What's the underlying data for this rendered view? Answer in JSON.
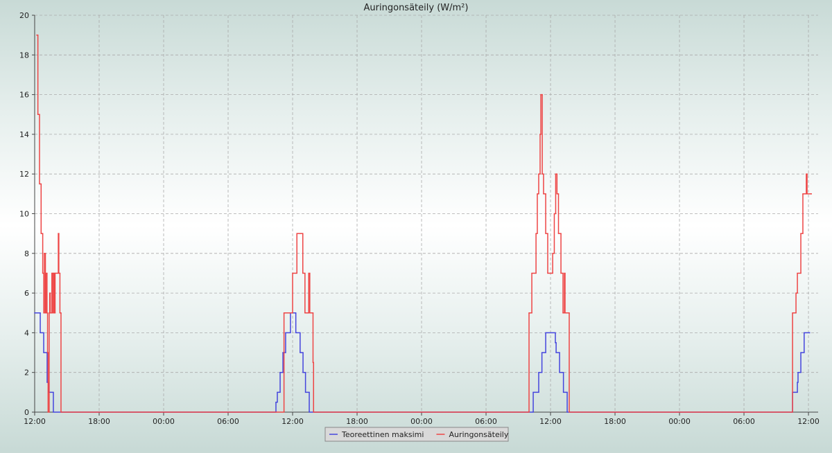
{
  "chart_data": {
    "type": "line",
    "title": "Auringonsäteily (W/m²)",
    "step": "post",
    "grid": true,
    "xlim": [
      0,
      72.9
    ],
    "ylim": [
      0,
      20
    ],
    "xticks": [
      {
        "value": 0,
        "label": "12:00"
      },
      {
        "value": 6,
        "label": "18:00"
      },
      {
        "value": 12,
        "label": "00:00"
      },
      {
        "value": 18,
        "label": "06:00"
      },
      {
        "value": 24,
        "label": "12:00"
      },
      {
        "value": 30,
        "label": "18:00"
      },
      {
        "value": 36,
        "label": "00:00"
      },
      {
        "value": 42,
        "label": "06:00"
      },
      {
        "value": 48,
        "label": "12:00"
      },
      {
        "value": 54,
        "label": "18:00"
      },
      {
        "value": 60,
        "label": "00:00"
      },
      {
        "value": 66,
        "label": "06:00"
      },
      {
        "value": 72,
        "label": "12:00"
      }
    ],
    "yticks": [
      0,
      2,
      4,
      6,
      8,
      10,
      12,
      14,
      16,
      18,
      20
    ],
    "series": [
      {
        "name": "Teoreettinen maksimi",
        "color": "#4444dd",
        "x": [
          0,
          0.52,
          0.84,
          1.16,
          1.29,
          1.74,
          22.45,
          22.58,
          22.84,
          23.1,
          23.35,
          23.8,
          24.3,
          24.7,
          24.97,
          25.2,
          25.55,
          46.39,
          46.9,
          47.2,
          47.55,
          48.45,
          48.52,
          48.84,
          49.2,
          49.55,
          70.52,
          70.97,
          71.03,
          71.29,
          71.6,
          72.1
        ],
        "values": [
          5,
          4,
          3,
          1.5,
          1,
          0,
          0.5,
          1,
          2,
          3,
          4,
          5,
          4,
          3,
          2,
          1,
          0,
          1,
          2,
          3,
          4,
          3.5,
          3,
          2,
          1,
          0,
          1,
          1.5,
          2,
          3,
          4,
          4
        ]
      },
      {
        "name": "Auringonsäteily",
        "color": "#ee4444",
        "x": [
          0.2,
          0.3,
          0.45,
          0.6,
          0.75,
          0.85,
          0.9,
          1.0,
          1.05,
          1.15,
          1.2,
          1.25,
          1.35,
          1.4,
          1.45,
          1.6,
          1.7,
          1.75,
          1.85,
          1.9,
          2.2,
          2.25,
          2.35,
          2.45,
          23.2,
          24.0,
          24.4,
          24.95,
          25.15,
          25.5,
          25.6,
          25.9,
          25.95,
          46.0,
          46.26,
          46.65,
          46.77,
          46.9,
          47.03,
          47.1,
          47.23,
          47.35,
          47.55,
          47.74,
          48.2,
          48.35,
          48.48,
          48.6,
          48.74,
          48.97,
          49.16,
          49.29,
          49.35,
          49.74,
          70.52,
          70.84,
          70.97,
          71.29,
          71.48,
          71.8,
          71.87,
          72.26
        ],
        "values": [
          19,
          15,
          11.5,
          9,
          7,
          5,
          8,
          5,
          7,
          5,
          3,
          0,
          5,
          6,
          5,
          7,
          5,
          7,
          5,
          7,
          9,
          7,
          5,
          0,
          5,
          7,
          9,
          7,
          5,
          7,
          5,
          2.5,
          0,
          5,
          7,
          9,
          11,
          12,
          14,
          16,
          12,
          11,
          9,
          7,
          8,
          10,
          12,
          11,
          9,
          7,
          5,
          7,
          5,
          0,
          5,
          6,
          7,
          9,
          11,
          12,
          11,
          11
        ]
      }
    ]
  }
}
